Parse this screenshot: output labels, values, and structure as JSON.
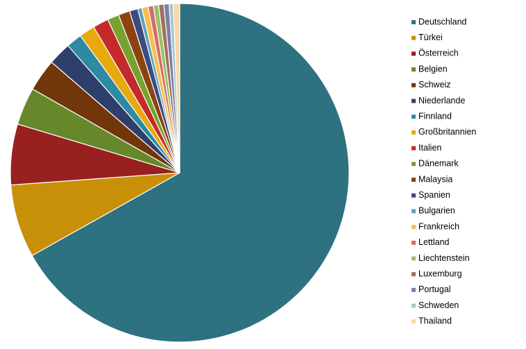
{
  "chart_data": {
    "type": "pie",
    "categories": [
      "Deutschland",
      "Türkei",
      "Österreich",
      "Belgien",
      "Schweiz",
      "Niederlande",
      "Finnland",
      "Großbritannien",
      "Italien",
      "Dänemark",
      "Malaysia",
      "Spanien",
      "Bulgarien",
      "Frankreich",
      "Lettland",
      "Liechtenstein",
      "Luxemburg",
      "Portugal",
      "Schweden",
      "Thailand"
    ],
    "values": [
      67,
      7,
      5.8,
      3.6,
      3.1,
      2.2,
      1.5,
      1.5,
      1.5,
      1.1,
      1.1,
      0.8,
      0.4,
      0.6,
      0.5,
      0.5,
      0.5,
      0.5,
      0.4,
      0.6
    ],
    "colors": [
      "#2e7180",
      "#c88f08",
      "#98201f",
      "#66882a",
      "#71360a",
      "#2f3f6b",
      "#2e8aa3",
      "#e8a90e",
      "#c42a2a",
      "#76a32e",
      "#8b4310",
      "#3a4d80",
      "#5fa0b8",
      "#f5c050",
      "#d46c6a",
      "#9cc068",
      "#a07060",
      "#7a80a8",
      "#a8c8d0",
      "#f8d8a8"
    ],
    "legend": "right"
  }
}
